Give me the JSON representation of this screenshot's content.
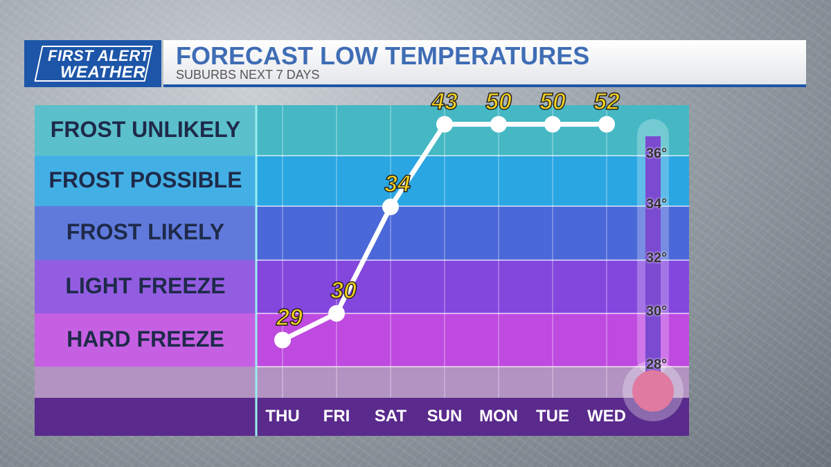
{
  "header": {
    "logo_line1": "FIRST ALERT",
    "logo_line2": "WEATHER",
    "title": "FORECAST LOW TEMPERATURES",
    "subtitle": "SUBURBS NEXT 7 DAYS"
  },
  "bands": [
    {
      "label": "FROST UNLIKELY",
      "color": "#45b8c4"
    },
    {
      "label": "FROST POSSIBLE",
      "color": "#2aa6e2"
    },
    {
      "label": "FROST LIKELY",
      "color": "#4a68d8"
    },
    {
      "label": "LIGHT FREEZE",
      "color": "#8447de"
    },
    {
      "label": "HARD FREEZE",
      "color": "#bf4ae0"
    }
  ],
  "chart_data": {
    "type": "line",
    "categories": [
      "THU",
      "FRI",
      "SAT",
      "SUN",
      "MON",
      "TUE",
      "WED"
    ],
    "values": [
      29,
      30,
      34,
      43,
      50,
      50,
      52
    ],
    "thermometer_ticks": [
      "36°",
      "34°",
      "32°",
      "30°",
      "28°"
    ],
    "line_color": "#ffffff",
    "label_color": "#f7d21e",
    "grid": true
  }
}
